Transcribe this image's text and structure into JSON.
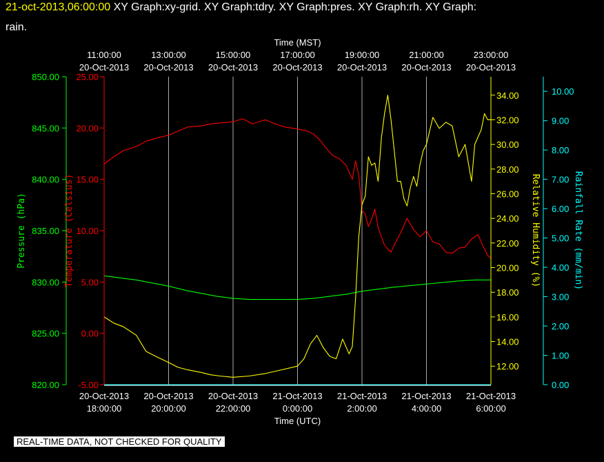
{
  "header": {
    "timestamp": "21-oct-2013,06:00:00",
    "title_rest": "XY Graph:xy-grid.  XY Graph:tdry.  XY Graph:pres.  XY Graph:rh.  XY Graph:",
    "title_line2": "rain."
  },
  "footer": {
    "quality_notice": "REAL-TIME DATA, NOT CHECKED FOR QUALITY"
  },
  "colors": {
    "background": "#000000",
    "frame": "#ffffff",
    "grid": "#aaaaaa",
    "pressure": "#00ff00",
    "temperature": "#ff0000",
    "humidity": "#ffff00",
    "rainfall": "#00ffff"
  },
  "chart_data": {
    "type": "line",
    "top_axis": {
      "title": "Time (MST)",
      "ticks": [
        {
          "time": "11:00:00",
          "date": "20-Oct-2013"
        },
        {
          "time": "13:00:00",
          "date": "20-Oct-2013"
        },
        {
          "time": "15:00:00",
          "date": "20-Oct-2013"
        },
        {
          "time": "17:00:00",
          "date": "20-Oct-2013"
        },
        {
          "time": "19:00:00",
          "date": "20-Oct-2013"
        },
        {
          "time": "21:00:00",
          "date": "20-Oct-2013"
        },
        {
          "time": "23:00:00",
          "date": "20-Oct-2013"
        }
      ]
    },
    "bottom_axis": {
      "title": "Time (UTC)",
      "ticks": [
        {
          "date": "20-Oct-2013",
          "time": "18:00:00"
        },
        {
          "date": "20-Oct-2013",
          "time": "20:00:00"
        },
        {
          "date": "20-Oct-2013",
          "time": "22:00:00"
        },
        {
          "date": "21-Oct-2013",
          "time": "0:00:00"
        },
        {
          "date": "21-Oct-2013",
          "time": "2:00:00"
        },
        {
          "date": "21-Oct-2013",
          "time": "4:00:00"
        },
        {
          "date": "21-Oct-2013",
          "time": "6:00:00"
        }
      ],
      "range_hours_utc": [
        18,
        30
      ]
    },
    "y_axes": {
      "pressure": {
        "label": "Pressure (hPa)",
        "range": [
          820,
          850
        ],
        "ticks": [
          "820.00",
          "825.00",
          "830.00",
          "835.00",
          "840.00",
          "845.00",
          "850.00"
        ]
      },
      "temperature": {
        "label": "Temperature (Celsius)",
        "range": [
          -5,
          25
        ],
        "ticks": [
          "-5.00",
          "0.00",
          "5.00",
          "10.00",
          "15.00",
          "20.00",
          "25.00"
        ]
      },
      "humidity": {
        "label": "Relative Humidity (%)",
        "range": [
          10.5,
          35.5
        ],
        "ticks": [
          "12.00",
          "14.00",
          "16.00",
          "18.00",
          "20.00",
          "22.00",
          "24.00",
          "26.00",
          "28.00",
          "30.00",
          "32.00",
          "34.00"
        ]
      },
      "rainfall": {
        "label": "Rainfall Rate (mm/min)",
        "range": [
          0,
          10.5
        ],
        "ticks": [
          "0.00",
          "1.00",
          "2.00",
          "3.00",
          "4.00",
          "5.00",
          "6.00",
          "7.00",
          "8.00",
          "9.00",
          "10.00"
        ]
      }
    },
    "grid": true,
    "series": [
      {
        "key": "pressure",
        "x_hours_utc": [
          18.0,
          19.0,
          20.0,
          20.5,
          21.0,
          21.5,
          22.0,
          22.5,
          23.0,
          24.0,
          24.5,
          25.0,
          25.5,
          26.0,
          26.5,
          27.0,
          28.0,
          29.0,
          29.5,
          30.0
        ],
        "values": [
          830.6,
          830.2,
          829.6,
          829.2,
          828.9,
          828.6,
          828.4,
          828.3,
          828.3,
          828.3,
          828.4,
          828.6,
          828.8,
          829.1,
          829.3,
          829.5,
          829.8,
          830.1,
          830.2,
          830.2
        ]
      },
      {
        "key": "temperature",
        "x_hours_utc": [
          18.0,
          18.3,
          18.6,
          19.0,
          19.3,
          19.6,
          20.0,
          20.3,
          20.6,
          21.0,
          21.3,
          21.6,
          22.0,
          22.3,
          22.6,
          23.0,
          23.3,
          23.6,
          24.0,
          24.3,
          24.5,
          24.7,
          24.9,
          25.1,
          25.3,
          25.5,
          25.7,
          25.8,
          25.9,
          26.0,
          26.1,
          26.2,
          26.3,
          26.4,
          26.5,
          26.6,
          26.7,
          26.8,
          26.9,
          27.0,
          27.2,
          27.4,
          27.6,
          27.8,
          28.0,
          28.2,
          28.4,
          28.6,
          28.8,
          29.0,
          29.2,
          29.4,
          29.6,
          29.8,
          29.9,
          30.0
        ],
        "values": [
          16.5,
          17.2,
          17.8,
          18.2,
          18.7,
          19.0,
          19.3,
          19.7,
          20.1,
          20.2,
          20.4,
          20.5,
          20.6,
          20.9,
          20.4,
          20.8,
          20.4,
          20.1,
          19.9,
          19.7,
          19.4,
          18.8,
          18.0,
          17.3,
          17.0,
          16.4,
          15.0,
          16.8,
          15.4,
          12.0,
          11.6,
          10.4,
          11.1,
          12.1,
          10.3,
          9.4,
          8.6,
          8.2,
          7.9,
          8.6,
          9.8,
          11.2,
          10.1,
          9.4,
          10.0,
          8.9,
          8.7,
          7.9,
          7.8,
          8.3,
          8.4,
          9.2,
          9.6,
          8.2,
          7.6,
          7.3
        ]
      },
      {
        "key": "humidity",
        "x_hours_utc": [
          18.0,
          18.3,
          18.6,
          19.0,
          19.3,
          19.6,
          20.0,
          20.3,
          20.6,
          21.0,
          21.3,
          21.6,
          22.0,
          22.5,
          23.0,
          23.5,
          24.0,
          24.2,
          24.4,
          24.6,
          24.8,
          25.0,
          25.2,
          25.4,
          25.6,
          25.7,
          25.8,
          25.9,
          26.0,
          26.1,
          26.2,
          26.3,
          26.4,
          26.5,
          26.6,
          26.7,
          26.8,
          26.9,
          27.0,
          27.1,
          27.2,
          27.3,
          27.4,
          27.5,
          27.6,
          27.7,
          27.8,
          27.9,
          28.0,
          28.2,
          28.4,
          28.6,
          28.8,
          29.0,
          29.2,
          29.4,
          29.5,
          29.6,
          29.7,
          29.8,
          29.9,
          30.0
        ],
        "values": [
          16.0,
          15.5,
          15.2,
          14.5,
          13.2,
          12.8,
          12.3,
          11.9,
          11.7,
          11.5,
          11.3,
          11.2,
          11.1,
          11.2,
          11.4,
          11.7,
          12.0,
          12.6,
          13.8,
          14.5,
          13.5,
          12.8,
          12.6,
          14.2,
          13.0,
          13.6,
          17.5,
          22.5,
          25.1,
          25.8,
          29.0,
          28.3,
          28.5,
          27.0,
          30.5,
          32.5,
          34.0,
          32.0,
          29.5,
          27.0,
          27.0,
          25.6,
          25.0,
          26.5,
          27.4,
          26.6,
          28.4,
          29.5,
          30.0,
          32.2,
          31.3,
          31.8,
          31.5,
          29.0,
          30.0,
          27.0,
          30.0,
          30.6,
          31.2,
          32.5,
          32.0,
          32.0
        ]
      },
      {
        "key": "rainfall",
        "x_hours_utc": [
          18.0,
          30.0
        ],
        "values": [
          0.0,
          0.0
        ]
      }
    ]
  }
}
